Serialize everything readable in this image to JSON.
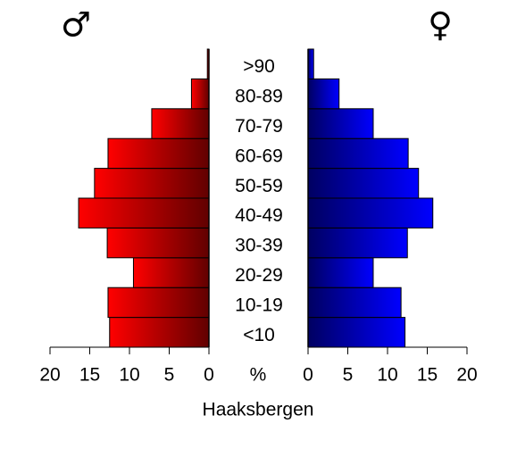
{
  "chart_data": {
    "type": "pyramid",
    "title": "Haaksbergen",
    "x_label": "%",
    "categories": [
      "<10",
      "10-19",
      "20-29",
      "30-39",
      "40-49",
      "50-59",
      "60-69",
      "70-79",
      "80-89",
      ">90"
    ],
    "series": [
      {
        "name": "♂",
        "color": "#ff0000",
        "values": [
          12.5,
          12.7,
          9.5,
          12.8,
          16.4,
          14.4,
          12.7,
          7.2,
          2.2,
          0.2
        ]
      },
      {
        "name": "♀",
        "color": "#0000ff",
        "values": [
          12.2,
          11.7,
          8.2,
          12.5,
          15.7,
          13.9,
          12.6,
          8.2,
          3.9,
          0.7
        ]
      }
    ],
    "xlim": [
      0,
      20
    ],
    "xticks": [
      0,
      5,
      10,
      15,
      20
    ]
  }
}
